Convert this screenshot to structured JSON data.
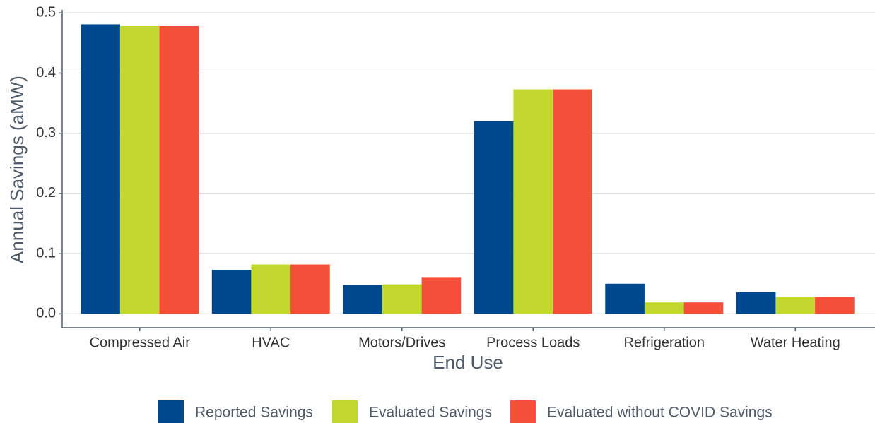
{
  "chart_data": {
    "type": "bar",
    "x_label": "End Use",
    "y_label": "Annual Savings (aMW)",
    "categories": [
      "Compressed Air",
      "HVAC",
      "Motors/Drives",
      "Process Loads",
      "Refrigeration",
      "Water Heating"
    ],
    "series": [
      {
        "name": "Reported Savings",
        "color": "#00488d",
        "values": [
          0.481,
          0.073,
          0.048,
          0.32,
          0.05,
          0.036
        ]
      },
      {
        "name": "Evaluated Savings",
        "color": "#c3d82e",
        "values": [
          0.478,
          0.082,
          0.049,
          0.373,
          0.019,
          0.028
        ]
      },
      {
        "name": "Evaluated without COVID Savings",
        "color": "#f44f39",
        "values": [
          0.478,
          0.082,
          0.061,
          0.373,
          0.019,
          0.028
        ]
      }
    ],
    "ylim": [
      -0.023,
      0.505
    ],
    "yticks": [
      {
        "value": 0,
        "label": "0.0"
      },
      0.1,
      0.2,
      0.3,
      0.4,
      0.5
    ],
    "grid": true,
    "legend": "bottom"
  }
}
